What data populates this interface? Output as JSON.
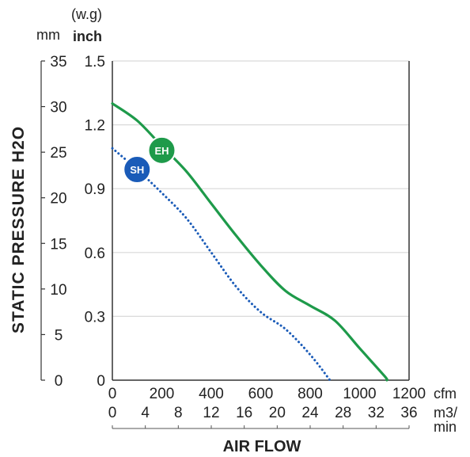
{
  "chart_data": {
    "type": "line",
    "ylabel": "STATIC PRESSURE H2O",
    "xlabel": "AIR FLOW",
    "y_units": {
      "mm": "mm",
      "wg_top": "(w.g)",
      "wg_bottom": "inch"
    },
    "x_units": {
      "cfm": "cfm",
      "m3_top": "m3/",
      "m3_bottom": "min"
    },
    "y_inch_ticks": [
      "0",
      "0.3",
      "0.6",
      "0.9",
      "1.2",
      "1.5"
    ],
    "y_inch_values": [
      0,
      0.3,
      0.6,
      0.9,
      1.2,
      1.5
    ],
    "y_mm_ticks": [
      "0",
      "5",
      "10",
      "15",
      "20",
      "25",
      "30",
      "35"
    ],
    "y_mm_values": [
      0,
      5,
      10,
      15,
      20,
      25,
      30,
      35
    ],
    "x_cfm_ticks": [
      "0",
      "200",
      "400",
      "600",
      "800",
      "1000",
      "1200"
    ],
    "x_cfm_values": [
      0,
      200,
      400,
      600,
      800,
      1000,
      1200
    ],
    "x_m3_ticks": [
      "0",
      "4",
      "8",
      "12",
      "16",
      "20",
      "24",
      "28",
      "32",
      "36"
    ],
    "x_m3_values": [
      0,
      4,
      8,
      12,
      16,
      20,
      24,
      28,
      32,
      36
    ],
    "xlim_cfm": [
      0,
      1200
    ],
    "ylim_inch": [
      0,
      1.5
    ],
    "grid": true,
    "series": [
      {
        "name": "EH",
        "color": "#1e9a4a",
        "style": "solid",
        "marker_at": [
          200,
          1.08
        ],
        "points": [
          [
            0,
            1.3
          ],
          [
            100,
            1.22
          ],
          [
            200,
            1.1
          ],
          [
            300,
            0.98
          ],
          [
            400,
            0.83
          ],
          [
            500,
            0.68
          ],
          [
            600,
            0.54
          ],
          [
            700,
            0.42
          ],
          [
            800,
            0.35
          ],
          [
            900,
            0.28
          ],
          [
            1000,
            0.15
          ],
          [
            1100,
            0.02
          ],
          [
            1110,
            0.0
          ]
        ]
      },
      {
        "name": "SH",
        "color": "#1a5bb8",
        "style": "dotted",
        "marker_at": [
          100,
          0.99
        ],
        "points": [
          [
            0,
            1.09
          ],
          [
            100,
            0.99
          ],
          [
            200,
            0.88
          ],
          [
            300,
            0.76
          ],
          [
            400,
            0.6
          ],
          [
            500,
            0.44
          ],
          [
            600,
            0.32
          ],
          [
            700,
            0.24
          ],
          [
            800,
            0.12
          ],
          [
            880,
            0.0
          ]
        ]
      }
    ]
  }
}
